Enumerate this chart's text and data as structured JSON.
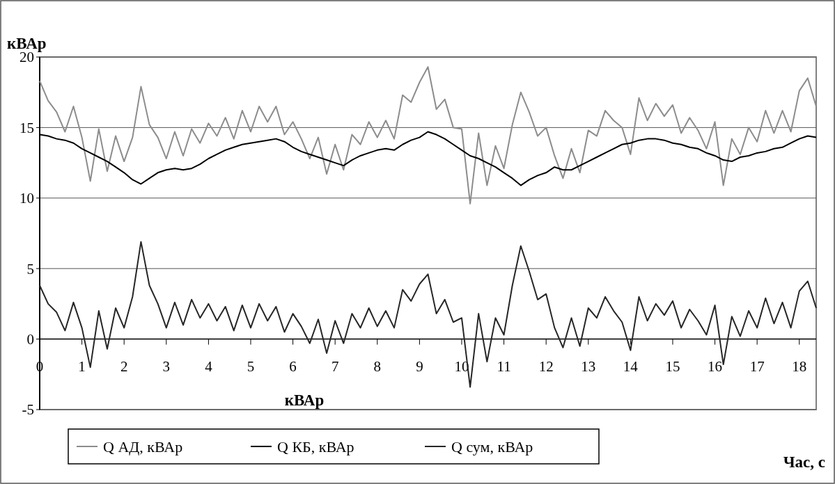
{
  "chart_data": {
    "type": "line",
    "ylabel": "кВАр",
    "xlabel": "Час, с",
    "annotations": [
      "кВАр"
    ],
    "x": [
      0,
      0.2,
      0.4,
      0.6,
      0.8,
      1,
      1.2,
      1.4,
      1.6,
      1.8,
      2,
      2.2,
      2.4,
      2.6,
      2.8,
      3,
      3.2,
      3.4,
      3.6,
      3.8,
      4,
      4.2,
      4.4,
      4.6,
      4.8,
      5,
      5.2,
      5.4,
      5.6,
      5.8,
      6,
      6.2,
      6.4,
      6.6,
      6.8,
      7,
      7.2,
      7.4,
      7.6,
      7.8,
      8,
      8.2,
      8.4,
      8.6,
      8.8,
      9,
      9.2,
      9.4,
      9.6,
      9.8,
      10,
      10.2,
      10.4,
      10.6,
      10.8,
      11,
      11.2,
      11.4,
      11.6,
      11.8,
      12,
      12.2,
      12.4,
      12.6,
      12.8,
      13,
      13.2,
      13.4,
      13.6,
      13.8,
      14,
      14.2,
      14.4,
      14.6,
      14.8,
      15,
      15.2,
      15.4,
      15.6,
      15.8,
      16,
      16.2,
      16.4,
      16.6,
      16.8,
      17,
      17.2,
      17.4,
      17.6,
      17.8,
      18,
      18.2,
      18.4
    ],
    "series": [
      {
        "name": "Q АД, кВАр",
        "color": "#8c8c8c",
        "values": [
          18.3,
          16.9,
          16.1,
          14.7,
          16.5,
          14.3,
          11.2,
          14.9,
          11.9,
          14.4,
          12.6,
          14.3,
          17.9,
          15.2,
          14.3,
          12.8,
          14.7,
          13.0,
          14.9,
          13.9,
          15.3,
          14.4,
          15.7,
          14.2,
          16.2,
          14.7,
          16.5,
          15.4,
          16.5,
          14.5,
          15.4,
          14.2,
          12.8,
          14.3,
          11.7,
          13.8,
          12.0,
          14.5,
          13.8,
          15.4,
          14.3,
          15.5,
          14.2,
          17.3,
          16.8,
          18.2,
          19.3,
          16.3,
          17.0,
          15.0,
          14.9,
          9.6,
          14.6,
          10.9,
          13.7,
          12.1,
          15.2,
          17.5,
          16.1,
          14.4,
          15.0,
          13.0,
          11.4,
          13.5,
          11.8,
          14.8,
          14.4,
          16.2,
          15.5,
          15.0,
          13.1,
          17.1,
          15.5,
          16.7,
          15.8,
          16.6,
          14.6,
          15.7,
          14.8,
          13.5,
          15.4,
          10.9,
          14.2,
          13.1,
          15.0,
          14.0,
          16.2,
          14.6,
          16.2,
          14.7,
          17.6,
          18.5,
          16.5
        ]
      },
      {
        "name": "Q КБ, кВАр",
        "color": "#000000",
        "values": [
          14.5,
          14.4,
          14.2,
          14.1,
          13.9,
          13.5,
          13.2,
          12.9,
          12.6,
          12.2,
          11.8,
          11.3,
          11.0,
          11.4,
          11.8,
          12.0,
          12.1,
          12.0,
          12.1,
          12.4,
          12.8,
          13.1,
          13.4,
          13.6,
          13.8,
          13.9,
          14.0,
          14.1,
          14.2,
          14.0,
          13.6,
          13.3,
          13.1,
          12.9,
          12.7,
          12.5,
          12.3,
          12.7,
          13.0,
          13.2,
          13.4,
          13.5,
          13.4,
          13.8,
          14.1,
          14.3,
          14.7,
          14.5,
          14.2,
          13.8,
          13.4,
          13.0,
          12.8,
          12.5,
          12.2,
          11.8,
          11.4,
          10.9,
          11.3,
          11.6,
          11.8,
          12.2,
          12.0,
          12.0,
          12.3,
          12.6,
          12.9,
          13.2,
          13.5,
          13.8,
          13.9,
          14.1,
          14.2,
          14.2,
          14.1,
          13.9,
          13.8,
          13.6,
          13.5,
          13.2,
          13.0,
          12.7,
          12.6,
          12.9,
          13.0,
          13.2,
          13.3,
          13.5,
          13.6,
          13.9,
          14.2,
          14.4,
          14.3
        ]
      },
      {
        "name": "Q сум, кВАр",
        "color": "#262626",
        "values": [
          3.8,
          2.5,
          1.9,
          0.6,
          2.6,
          0.8,
          -2.0,
          2.0,
          -0.7,
          2.2,
          0.8,
          3.0,
          6.9,
          3.8,
          2.5,
          0.8,
          2.6,
          1.0,
          2.8,
          1.5,
          2.5,
          1.3,
          2.3,
          0.6,
          2.4,
          0.8,
          2.5,
          1.3,
          2.3,
          0.5,
          1.8,
          0.9,
          -0.3,
          1.4,
          -1.0,
          1.3,
          -0.3,
          1.8,
          0.8,
          2.2,
          0.9,
          2.0,
          0.8,
          3.5,
          2.7,
          3.9,
          4.6,
          1.8,
          2.8,
          1.2,
          1.5,
          -3.4,
          1.8,
          -1.6,
          1.5,
          0.3,
          3.8,
          6.6,
          4.8,
          2.8,
          3.2,
          0.8,
          -0.6,
          1.5,
          -0.5,
          2.2,
          1.5,
          3.0,
          2.0,
          1.2,
          -0.8,
          3.0,
          1.3,
          2.5,
          1.7,
          2.7,
          0.8,
          2.1,
          1.3,
          0.3,
          2.4,
          -1.8,
          1.6,
          0.2,
          2.0,
          0.8,
          2.9,
          1.1,
          2.6,
          0.8,
          3.4,
          4.1,
          2.2
        ]
      }
    ],
    "xlim": [
      0,
      18.4
    ],
    "xticks": [
      0,
      1,
      2,
      3,
      4,
      5,
      6,
      7,
      8,
      9,
      10,
      11,
      12,
      13,
      14,
      15,
      16,
      17,
      18
    ],
    "ylim": [
      -5,
      20
    ],
    "yticks": [
      -5,
      0,
      5,
      10,
      15,
      20
    ],
    "grid": "y",
    "legend": "bottom",
    "line_style": "solid",
    "marker": "none"
  }
}
